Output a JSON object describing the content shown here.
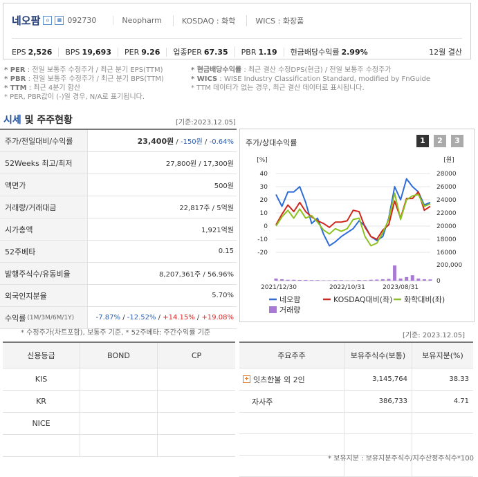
{
  "header": {
    "name": "네오팜",
    "code": "092730",
    "english_name": "Neopharm",
    "market": "KOSDAQ : 화학",
    "wics": "WICS : 화장품",
    "period": "12월 결산",
    "metrics": [
      {
        "label": "EPS",
        "value": "2,526"
      },
      {
        "label": "BPS",
        "value": "19,693"
      },
      {
        "label": "PER",
        "value": "9.26"
      },
      {
        "label": "업종PER",
        "value": "67.35"
      },
      {
        "label": "PBR",
        "value": "1.19"
      },
      {
        "label": "현금배당수익률",
        "value": "2.99%"
      }
    ]
  },
  "notes": {
    "l1_key": "* PER",
    "l1": ": 전일 보통주 수정주가 / 최근 분기 EPS(TTM)",
    "l2_key": "* PBR",
    "l2": ": 전일 보통주 수정주가 / 최근 분기 BPS(TTM)",
    "l3_key": "* TTM",
    "l3": ": 최근 4분기 합산",
    "l4": "* PER, PBR값이 (-)일 경우, N/A로 표기됩니다.",
    "r1_key": "* 현금배당수익률",
    "r1": ": 최근 결산 수정DPS(현금) / 전일 보통주 수정주가",
    "r2_key": "* WICS",
    "r2": ": WISE Industry Classification Standard, modified by FnGuide",
    "r3": "* TTM 데이터가 없는 경우, 최근 결산 데이터로 표시됩니다."
  },
  "quote": {
    "title_a": "시세",
    "title_b": " 및 주주현황",
    "base_date": "[기준:2023.12.05]",
    "price_label": "주가/전일대비/수익률",
    "price": "23,400원",
    "change": "-150원",
    "rate": "-0.64%",
    "rows": [
      {
        "k": "52Weeks 최고/최저",
        "v": "27,800원 / 17,300원"
      },
      {
        "k": "액면가",
        "v": "500원"
      },
      {
        "k": "거래량/거래대금",
        "v": "22,817주 / 5억원"
      },
      {
        "k": "시가총액",
        "v": "1,921억원"
      },
      {
        "k": "52주베타",
        "v": "0.15"
      },
      {
        "k": "발행주식수/유동비율",
        "v": "8,207,361주 / 56.96%"
      },
      {
        "k": "외국인지분율",
        "v": "5.70%"
      }
    ],
    "returns_label": "수익률",
    "returns_sub": "(1M/3M/6M/1Y)",
    "returns": [
      "-7.87%",
      "-12.52%",
      "+14.15%",
      "+19.08%"
    ],
    "note": "* 수정주가(차트포함), 보통주 기준, * 52주베타: 주간수익률 기준"
  },
  "chart": {
    "title": "주가/상대수익률",
    "pages": [
      "1",
      "2",
      "3"
    ],
    "left_unit": "[%]",
    "right_unit": "[원]",
    "colors": {
      "neopharm": "#2d6cd6",
      "kosdaq": "#d0281e",
      "chem": "#8cc21f",
      "volume": "#a87ad6"
    }
  },
  "chart_data": {
    "type": "line",
    "x_ticks": [
      "2021/12/30",
      "2022/10/31",
      "2023/08/31"
    ],
    "y_left": {
      "label": "[%]",
      "ticks": [
        -20,
        -10,
        0,
        10,
        20,
        30,
        40
      ],
      "lim": [
        -20,
        40
      ]
    },
    "y_right": {
      "label": "[원]",
      "ticks": [
        16000,
        18000,
        20000,
        22000,
        24000,
        26000,
        28000
      ],
      "lim": [
        16000,
        28000
      ]
    },
    "volume_axis": {
      "ticks": [
        0,
        200000
      ]
    },
    "series": [
      {
        "name": "네오팜",
        "values": [
          24,
          15,
          26,
          26,
          30,
          18,
          2,
          6,
          -6,
          -15,
          -12,
          -8,
          -5,
          -2,
          4,
          0,
          -8,
          -11,
          -8,
          6,
          30,
          20,
          36,
          30,
          26,
          16,
          18
        ]
      },
      {
        "name": "KOSDAQ대비(좌)",
        "values": [
          1,
          9,
          16,
          11,
          18,
          11,
          7,
          4,
          2,
          -1,
          3,
          3,
          4,
          12,
          11,
          -1,
          -8,
          -10,
          -3,
          1,
          19,
          6,
          21,
          21,
          26,
          12,
          15
        ]
      },
      {
        "name": "화학대비(좌)",
        "values": [
          0,
          7,
          12,
          6,
          13,
          6,
          8,
          3,
          -3,
          -6,
          -2,
          -4,
          -2,
          5,
          6,
          -8,
          -15,
          -13,
          -5,
          5,
          25,
          5,
          20,
          23,
          24,
          15,
          17
        ]
      }
    ],
    "volume": {
      "name": "거래량",
      "values": [
        0.12,
        0.08,
        0.05,
        0.05,
        0.04,
        0.04,
        0.03,
        0.03,
        0.02,
        0.02,
        0.03,
        0.03,
        0.02,
        0.02,
        0.04,
        0.03,
        0.05,
        0.06,
        0.08,
        0.1,
        0.85,
        0.12,
        0.2,
        0.3,
        0.12,
        0.08,
        0.07
      ]
    }
  },
  "credit": {
    "headers": [
      "신용등급",
      "BOND",
      "CP"
    ],
    "rows": [
      "KIS",
      "KR",
      "NICE",
      ""
    ],
    "base_date": "[기준: 2023.12.05]"
  },
  "holders": {
    "headers": [
      "주요주주",
      "보유주식수(보통)",
      "보유지분(%)"
    ],
    "rows": [
      {
        "name": "잇츠한불 외 2인",
        "shares": "3,145,764",
        "pct": "38.33"
      },
      {
        "name": "자사주",
        "shares": "386,733",
        "pct": "4.71"
      },
      {
        "name": "",
        "shares": "",
        "pct": ""
      },
      {
        "name": "",
        "shares": "",
        "pct": ""
      },
      {
        "name": "",
        "shares": "",
        "pct": ""
      }
    ],
    "note": "* 보유지분 : 보유지분주식수/지수산정주식수*100"
  }
}
